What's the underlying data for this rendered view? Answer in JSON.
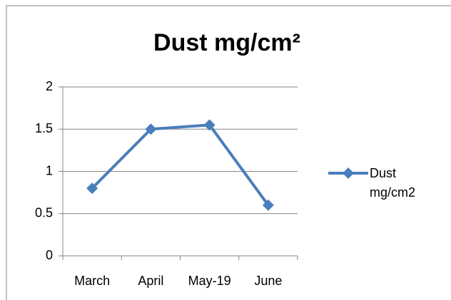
{
  "chart_data": {
    "type": "line",
    "title": "Dust mg/cm²",
    "categories": [
      "March",
      "April",
      "May-19",
      "June"
    ],
    "series": [
      {
        "name": "Dust mg/cm2",
        "color": "#4a7ebb",
        "values": [
          0.8,
          1.5,
          1.55,
          0.6
        ]
      }
    ],
    "ylim": [
      0,
      2
    ],
    "yticks": [
      0,
      0.5,
      1,
      1.5,
      2
    ],
    "grid": true,
    "legend": "right"
  }
}
